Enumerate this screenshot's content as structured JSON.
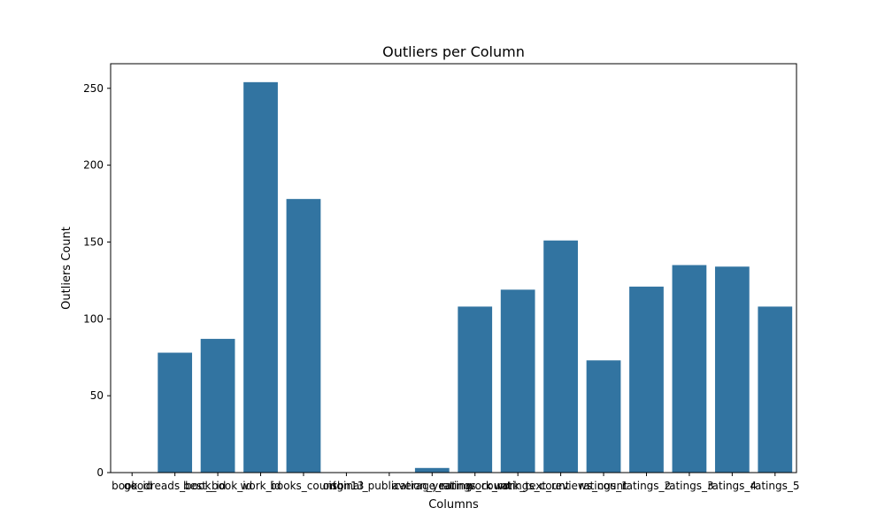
{
  "chart_data": {
    "type": "bar",
    "title": "Outliers per Column",
    "xlabel": "Columns",
    "ylabel": "Outliers Count",
    "ylim": [
      0,
      266
    ],
    "yticks": [
      0,
      50,
      100,
      150,
      200,
      250
    ],
    "grid": false,
    "legend": "none",
    "bar_color": "#3274a1",
    "categories": [
      "book_id",
      "goodreads_book_id",
      "best_book_id",
      "work_id",
      "books_count",
      "isbn13",
      "original_publication_year",
      "average_rating",
      "ratings_count",
      "work_ratings_count",
      "work_text_reviews_count",
      "ratings_1",
      "ratings_2",
      "ratings_3",
      "ratings_4",
      "ratings_5"
    ],
    "values": [
      0,
      78,
      87,
      254,
      178,
      0,
      0,
      3,
      108,
      119,
      151,
      73,
      121,
      135,
      134,
      108
    ]
  }
}
